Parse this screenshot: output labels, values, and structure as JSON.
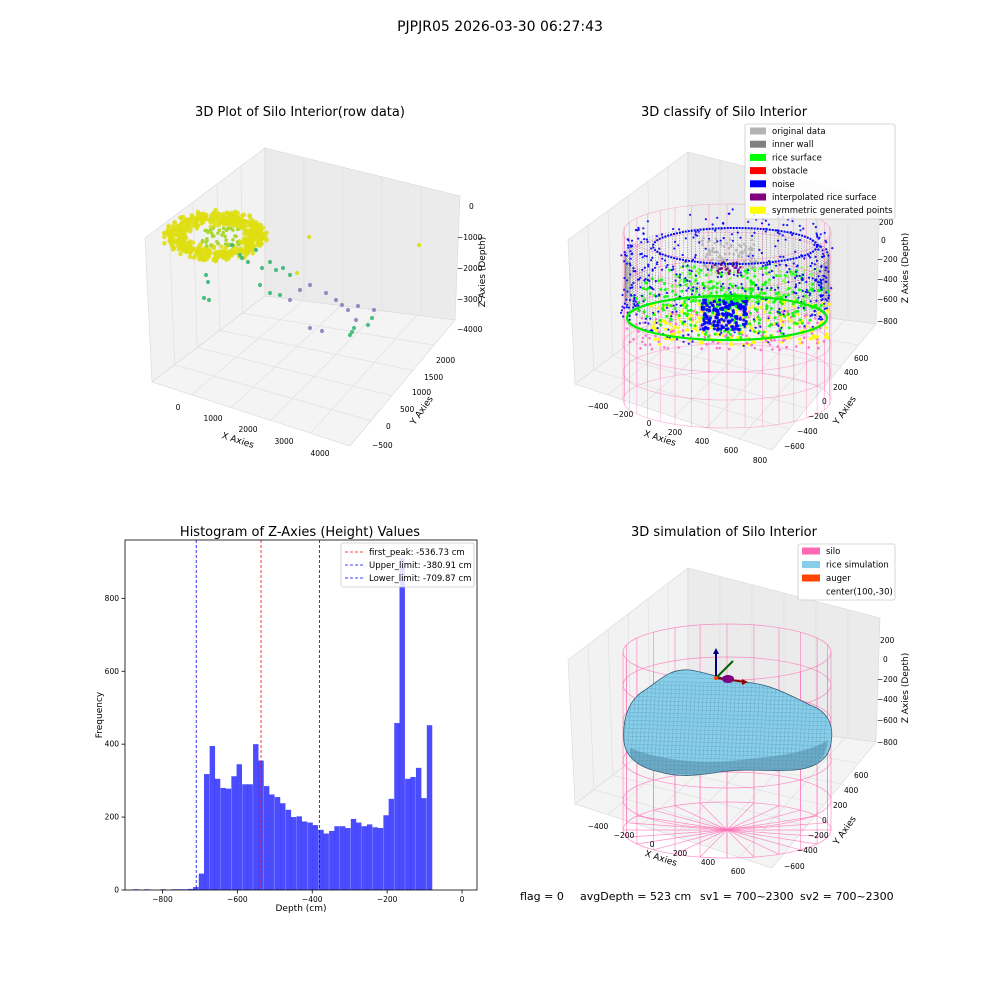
{
  "figure": {
    "suptitle": "PJPJR05 2026-03-30 06:27:43",
    "footer": {
      "flag": "flag = 0",
      "avg_depth": "avgDepth = 523 cm",
      "sv1": "sv1 = 700~2300",
      "sv2": "sv2 = 700~2300"
    }
  },
  "chart_data": [
    {
      "type": "scatter",
      "projection": "3d",
      "title": "3D Plot of Silo Interior(row data)",
      "xlabel": "X Axies",
      "ylabel": "Y Axies",
      "zlabel": "Z Axies (Depth)",
      "x_ticks": [
        "0",
        "1000",
        "2000",
        "3000",
        "4000"
      ],
      "y_ticks": [
        "−500",
        "0",
        "500",
        "1000",
        "1500",
        "2000"
      ],
      "z_ticks": [
        "0",
        "−1000",
        "−2000",
        "−3000",
        "−4000"
      ],
      "colormap": "viridis",
      "note_colors": {
        "dense": "#dede10",
        "mid": "#3cb878",
        "deep": "#9080b8"
      }
    },
    {
      "type": "scatter",
      "projection": "3d",
      "title": "3D classify of Silo Interior",
      "xlabel": "X Axies",
      "ylabel": "Y Axies",
      "zlabel": "Z Axies (Depth)",
      "x_ticks": [
        "−400",
        "−200",
        "0",
        "200",
        "400",
        "600",
        "800"
      ],
      "y_ticks": [
        "−600",
        "−400",
        "−200",
        "0",
        "200",
        "400",
        "600"
      ],
      "z_ticks": [
        "200",
        "0",
        "−200",
        "−400",
        "−600",
        "−800"
      ],
      "legend": [
        {
          "label": "original data",
          "color": "#b3b3b3"
        },
        {
          "label": "inner wall",
          "color": "#808080"
        },
        {
          "label": "rice surface",
          "color": "#00ff00"
        },
        {
          "label": "obstacle",
          "color": "#ff0000"
        },
        {
          "label": "noise",
          "color": "#0000ff"
        },
        {
          "label": "interpolated rice surface",
          "color": "#800080"
        },
        {
          "label": "symmetric generated points",
          "color": "#ffff00"
        }
      ],
      "legend_placement": "top-right"
    },
    {
      "type": "bar",
      "title": "Histogram of Z-Axies (Height) Values",
      "xlabel": "Depth (cm)",
      "ylabel": "Frequency",
      "xlim": [
        -900,
        40
      ],
      "ylim": [
        0,
        960
      ],
      "bin_width": 14.5,
      "x_ticks": [
        -800,
        -600,
        -400,
        -200,
        0
      ],
      "x_tick_labels": [
        "−800",
        "−600",
        "−400",
        "−200",
        "0"
      ],
      "y_ticks": [
        0,
        200,
        400,
        600,
        800
      ],
      "bar_color": "#0000ff",
      "bars": [
        {
          "x0": -878,
          "count": 2
        },
        {
          "x0": -849,
          "count": 2
        },
        {
          "x0": -805,
          "count": 2
        },
        {
          "x0": -776,
          "count": 2
        },
        {
          "x0": -761,
          "count": 2
        },
        {
          "x0": -747,
          "count": 2
        },
        {
          "x0": -732,
          "count": 3
        },
        {
          "x0": -718,
          "count": 8
        },
        {
          "x0": -703,
          "count": 45
        },
        {
          "x0": -689,
          "count": 318
        },
        {
          "x0": -674,
          "count": 395
        },
        {
          "x0": -660,
          "count": 305
        },
        {
          "x0": -645,
          "count": 280
        },
        {
          "x0": -631,
          "count": 278
        },
        {
          "x0": -616,
          "count": 312
        },
        {
          "x0": -602,
          "count": 345
        },
        {
          "x0": -587,
          "count": 290
        },
        {
          "x0": -573,
          "count": 290
        },
        {
          "x0": -558,
          "count": 400
        },
        {
          "x0": -544,
          "count": 355
        },
        {
          "x0": -529,
          "count": 285
        },
        {
          "x0": -515,
          "count": 262
        },
        {
          "x0": -500,
          "count": 255
        },
        {
          "x0": -486,
          "count": 238
        },
        {
          "x0": -471,
          "count": 220
        },
        {
          "x0": -457,
          "count": 200
        },
        {
          "x0": -442,
          "count": 202
        },
        {
          "x0": -428,
          "count": 188
        },
        {
          "x0": -413,
          "count": 185
        },
        {
          "x0": -399,
          "count": 178
        },
        {
          "x0": -384,
          "count": 165
        },
        {
          "x0": -370,
          "count": 155
        },
        {
          "x0": -355,
          "count": 162
        },
        {
          "x0": -341,
          "count": 175
        },
        {
          "x0": -326,
          "count": 175
        },
        {
          "x0": -312,
          "count": 170
        },
        {
          "x0": -297,
          "count": 195
        },
        {
          "x0": -283,
          "count": 185
        },
        {
          "x0": -268,
          "count": 175
        },
        {
          "x0": -254,
          "count": 180
        },
        {
          "x0": -239,
          "count": 172
        },
        {
          "x0": -225,
          "count": 170
        },
        {
          "x0": -210,
          "count": 205
        },
        {
          "x0": -196,
          "count": 250
        },
        {
          "x0": -181,
          "count": 458
        },
        {
          "x0": -167,
          "count": 910
        },
        {
          "x0": -152,
          "count": 305
        },
        {
          "x0": -138,
          "count": 310
        },
        {
          "x0": -123,
          "count": 335
        },
        {
          "x0": -109,
          "count": 252
        },
        {
          "x0": -94,
          "count": 452
        }
      ],
      "vlines": [
        {
          "x": -536.73,
          "color": "#ff0000",
          "label": "first_peak: -536.73 cm"
        },
        {
          "x": -380.91,
          "color": "#0000ff",
          "label": "Upper_limit: -380.91 cm"
        },
        {
          "x": -709.87,
          "color": "#0000ff",
          "label": "Lower_limit: -709.87 cm"
        }
      ],
      "legend_placement": "top-right"
    },
    {
      "type": "surface",
      "projection": "3d",
      "title": "3D simulation of Silo Interior",
      "xlabel": "X Axies",
      "ylabel": "Y Axies",
      "zlabel": "Z Axies (Depth)",
      "x_ticks": [
        "−400",
        "−200",
        "0",
        "200",
        "400",
        "600"
      ],
      "y_ticks": [
        "−600",
        "−400",
        "−200",
        "0",
        "200",
        "400",
        "600"
      ],
      "z_ticks": [
        "200",
        "0",
        "−200",
        "−400",
        "−600",
        "−800"
      ],
      "legend": [
        {
          "label": "silo",
          "color": "#ff69b4"
        },
        {
          "label": "rice simulation",
          "color": "#87ceeb"
        },
        {
          "label": "auger",
          "color": "#ff4500"
        },
        {
          "label": "center(100,-30)",
          "color": ""
        }
      ],
      "legend_placement": "top-right"
    }
  ]
}
